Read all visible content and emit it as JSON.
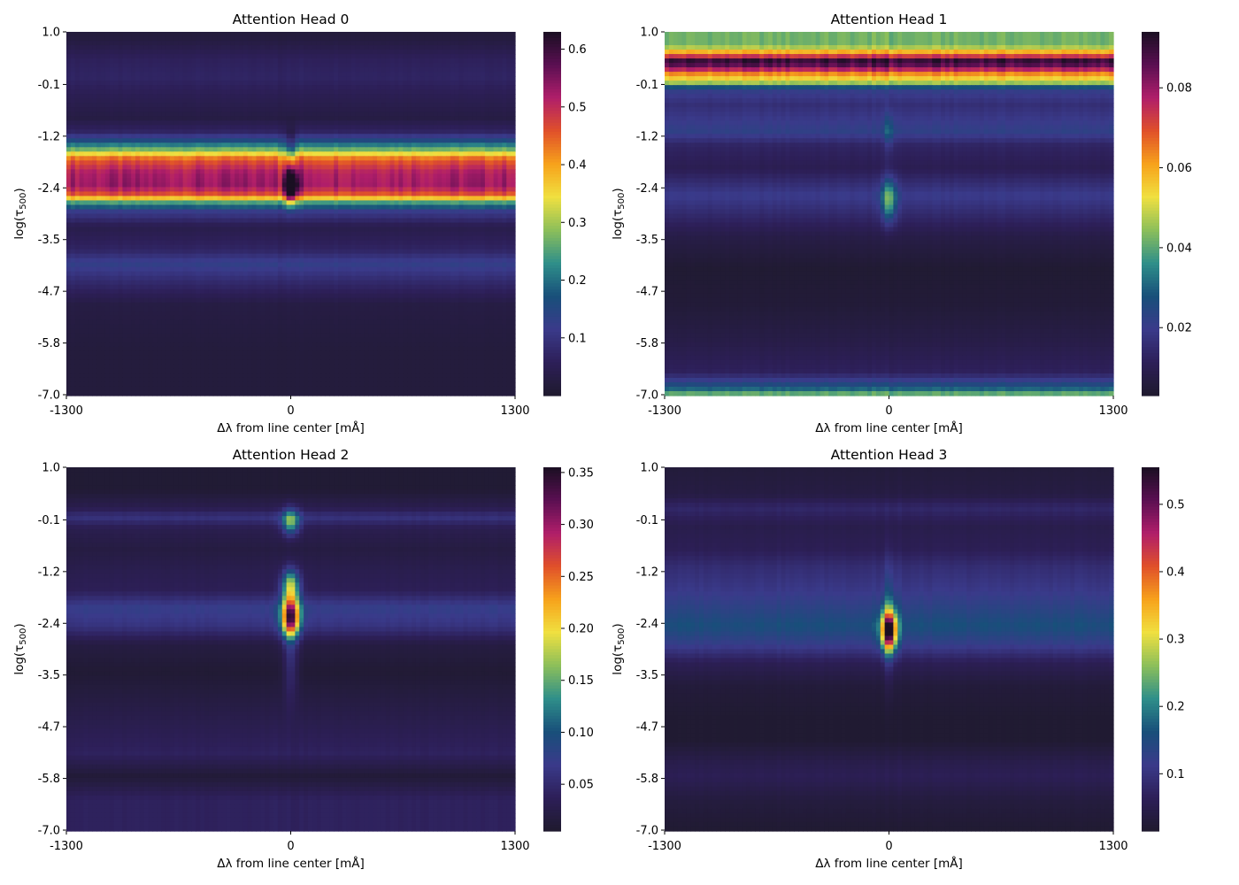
{
  "figure": {
    "colormap": "inferno_r-like",
    "colors": [
      "#1f1a2e",
      "#2d1f58",
      "#3a3a8a",
      "#184f7a",
      "#2f8f8a",
      "#8cbf5a",
      "#f0e040",
      "#f7a21b",
      "#e0502a",
      "#b01e6a",
      "#5a0f52",
      "#1a0f22"
    ]
  },
  "chart_data": [
    {
      "type": "heatmap",
      "title": "Attention Head 0",
      "xlabel": "Δλ from line center [mÅ]",
      "ylabel": "log(τ",
      "ylabel_sub": "500",
      "ylabel_close": ")",
      "xticks": [
        "-1300",
        "0",
        "1300"
      ],
      "yticks": [
        "1.0",
        "-0.1",
        "-1.2",
        "-2.4",
        "-3.5",
        "-4.7",
        "-5.8",
        "-7.0"
      ],
      "xlim": [
        -1300,
        1300
      ],
      "ylim": [
        1.0,
        -7.0
      ],
      "colorbar": {
        "ticks": [
          0.1,
          0.2,
          0.3,
          0.4,
          0.5,
          0.6
        ],
        "labels": [
          "0.1",
          "0.2",
          "0.3",
          "0.4",
          "0.5",
          "0.6"
        ],
        "vmin": 0.0,
        "vmax": 0.63
      },
      "bands": [
        {
          "y": 0.9,
          "v": 0.02
        },
        {
          "y": 0.4,
          "v": 0.06
        },
        {
          "y": 0.0,
          "v": 0.07
        },
        {
          "y": -0.4,
          "v": 0.05
        },
        {
          "y": -0.9,
          "v": 0.03
        },
        {
          "y": -1.2,
          "v": 0.07
        },
        {
          "y": -1.4,
          "v": 0.16
        },
        {
          "y": -1.6,
          "v": 0.28
        },
        {
          "y": -1.8,
          "v": 0.45
        },
        {
          "y": -2.1,
          "v": 0.52
        },
        {
          "y": -2.4,
          "v": 0.53
        },
        {
          "y": -2.6,
          "v": 0.45
        },
        {
          "y": -2.75,
          "v": 0.25
        },
        {
          "y": -2.95,
          "v": 0.12
        },
        {
          "y": -3.3,
          "v": 0.04
        },
        {
          "y": -3.8,
          "v": 0.07
        },
        {
          "y": -4.1,
          "v": 0.13
        },
        {
          "y": -4.5,
          "v": 0.08
        },
        {
          "y": -5.0,
          "v": 0.03
        },
        {
          "y": -6.0,
          "v": 0.02
        },
        {
          "y": -7.0,
          "v": 0.02
        }
      ],
      "features": [
        {
          "x": 0,
          "y": -2.4,
          "sx": 25,
          "sy": 0.25,
          "a": 0.3
        },
        {
          "x": 0,
          "y": -1.6,
          "sx": 20,
          "sy": 0.3,
          "a": -0.1
        }
      ]
    },
    {
      "type": "heatmap",
      "title": "Attention Head 1",
      "xlabel": "Δλ from line center [mÅ]",
      "ylabel": "log(τ",
      "ylabel_sub": "500",
      "ylabel_close": ")",
      "xticks": [
        "-1300",
        "0",
        "1300"
      ],
      "yticks": [
        "1.0",
        "-0.1",
        "-1.2",
        "-2.4",
        "-3.5",
        "-4.7",
        "-5.8",
        "-7.0"
      ],
      "xlim": [
        -1300,
        1300
      ],
      "ylim": [
        1.0,
        -7.0
      ],
      "colorbar": {
        "ticks": [
          0.02,
          0.04,
          0.06,
          0.08
        ],
        "labels": [
          "0.02",
          "0.04",
          "0.06",
          "0.08"
        ],
        "vmin": 0.003,
        "vmax": 0.094
      },
      "bands": [
        {
          "y": 1.0,
          "v": 0.042
        },
        {
          "y": 0.7,
          "v": 0.042
        },
        {
          "y": 0.55,
          "v": 0.06
        },
        {
          "y": 0.45,
          "v": 0.075
        },
        {
          "y": 0.35,
          "v": 0.093
        },
        {
          "y": 0.2,
          "v": 0.08
        },
        {
          "y": 0.05,
          "v": 0.06
        },
        {
          "y": -0.1,
          "v": 0.05
        },
        {
          "y": -0.25,
          "v": 0.022
        },
        {
          "y": -0.6,
          "v": 0.016
        },
        {
          "y": -1.2,
          "v": 0.022
        },
        {
          "y": -1.5,
          "v": 0.013
        },
        {
          "y": -2.0,
          "v": 0.01
        },
        {
          "y": -2.6,
          "v": 0.02
        },
        {
          "y": -2.9,
          "v": 0.016
        },
        {
          "y": -3.5,
          "v": 0.008
        },
        {
          "y": -4.2,
          "v": 0.004
        },
        {
          "y": -5.0,
          "v": 0.005
        },
        {
          "y": -5.8,
          "v": 0.008
        },
        {
          "y": -6.5,
          "v": 0.012
        },
        {
          "y": -6.85,
          "v": 0.03
        },
        {
          "y": -7.0,
          "v": 0.045
        }
      ],
      "features": [
        {
          "x": 0,
          "y": -2.7,
          "sx": 30,
          "sy": 0.35,
          "a": 0.025
        },
        {
          "x": 0,
          "y": -1.2,
          "sx": 20,
          "sy": 0.3,
          "a": 0.01
        }
      ]
    },
    {
      "type": "heatmap",
      "title": "Attention Head 2",
      "xlabel": "Δλ from line center [mÅ]",
      "ylabel": "log(τ",
      "ylabel_sub": "500",
      "ylabel_close": ")",
      "xticks": [
        "-1300",
        "0",
        "1300"
      ],
      "yticks": [
        "1.0",
        "-0.1",
        "-1.2",
        "-2.4",
        "-3.5",
        "-4.7",
        "-5.8",
        "-7.0"
      ],
      "xlim": [
        -1300,
        1300
      ],
      "ylim": [
        1.0,
        -7.0
      ],
      "colorbar": {
        "ticks": [
          0.05,
          0.1,
          0.15,
          0.2,
          0.25,
          0.3,
          0.35
        ],
        "labels": [
          "0.05",
          "0.10",
          "0.15",
          "0.20",
          "0.25",
          "0.30",
          "0.35"
        ],
        "vmin": 0.005,
        "vmax": 0.355
      },
      "bands": [
        {
          "y": 1.0,
          "v": 0.01
        },
        {
          "y": 0.5,
          "v": 0.01
        },
        {
          "y": 0.1,
          "v": 0.03
        },
        {
          "y": -0.1,
          "v": 0.06
        },
        {
          "y": -0.35,
          "v": 0.03
        },
        {
          "y": -0.8,
          "v": 0.02
        },
        {
          "y": -1.3,
          "v": 0.03
        },
        {
          "y": -1.7,
          "v": 0.035
        },
        {
          "y": -2.1,
          "v": 0.075
        },
        {
          "y": -2.5,
          "v": 0.06
        },
        {
          "y": -2.9,
          "v": 0.02
        },
        {
          "y": -3.5,
          "v": 0.01
        },
        {
          "y": -4.1,
          "v": 0.02
        },
        {
          "y": -4.7,
          "v": 0.03
        },
        {
          "y": -5.3,
          "v": 0.04
        },
        {
          "y": -5.8,
          "v": 0.012
        },
        {
          "y": -6.3,
          "v": 0.04
        },
        {
          "y": -7.0,
          "v": 0.04
        }
      ],
      "features": [
        {
          "x": 0,
          "y": -2.3,
          "sx": 35,
          "sy": 0.3,
          "a": 0.28
        },
        {
          "x": 0,
          "y": -1.6,
          "sx": 35,
          "sy": 0.25,
          "a": 0.14
        },
        {
          "x": 0,
          "y": -0.2,
          "sx": 35,
          "sy": 0.2,
          "a": 0.12
        },
        {
          "x": 0,
          "y": -3.3,
          "sx": 30,
          "sy": 0.6,
          "a": 0.04
        }
      ]
    },
    {
      "type": "heatmap",
      "title": "Attention Head 3",
      "xlabel": "Δλ from line center [mÅ]",
      "ylabel": "log(τ",
      "ylabel_sub": "500",
      "ylabel_close": ")",
      "xticks": [
        "-1300",
        "0",
        "1300"
      ],
      "yticks": [
        "1.0",
        "-0.1",
        "-1.2",
        "-2.4",
        "-3.5",
        "-4.7",
        "-5.8",
        "-7.0"
      ],
      "xlim": [
        -1300,
        1300
      ],
      "ylim": [
        1.0,
        -7.0
      ],
      "colorbar": {
        "ticks": [
          0.1,
          0.2,
          0.3,
          0.4,
          0.5
        ],
        "labels": [
          "0.1",
          "0.2",
          "0.3",
          "0.4",
          "0.5"
        ],
        "vmin": 0.015,
        "vmax": 0.555
      },
      "bands": [
        {
          "y": 1.0,
          "v": 0.03
        },
        {
          "y": 0.4,
          "v": 0.04
        },
        {
          "y": 0.1,
          "v": 0.08
        },
        {
          "y": -0.3,
          "v": 0.05
        },
        {
          "y": -0.8,
          "v": 0.06
        },
        {
          "y": -1.2,
          "v": 0.09
        },
        {
          "y": -1.7,
          "v": 0.11
        },
        {
          "y": -2.2,
          "v": 0.14
        },
        {
          "y": -2.5,
          "v": 0.16
        },
        {
          "y": -2.9,
          "v": 0.12
        },
        {
          "y": -3.3,
          "v": 0.06
        },
        {
          "y": -3.8,
          "v": 0.03
        },
        {
          "y": -4.5,
          "v": 0.02
        },
        {
          "y": -5.0,
          "v": 0.02
        },
        {
          "y": -5.5,
          "v": 0.05
        },
        {
          "y": -5.8,
          "v": 0.06
        },
        {
          "y": -6.3,
          "v": 0.035
        },
        {
          "y": -7.0,
          "v": 0.02
        }
      ],
      "features": [
        {
          "x": 0,
          "y": -2.6,
          "sx": 30,
          "sy": 0.3,
          "a": 0.42
        },
        {
          "x": 0,
          "y": -2.4,
          "sx": 20,
          "sy": 0.9,
          "a": 0.06
        }
      ]
    }
  ]
}
